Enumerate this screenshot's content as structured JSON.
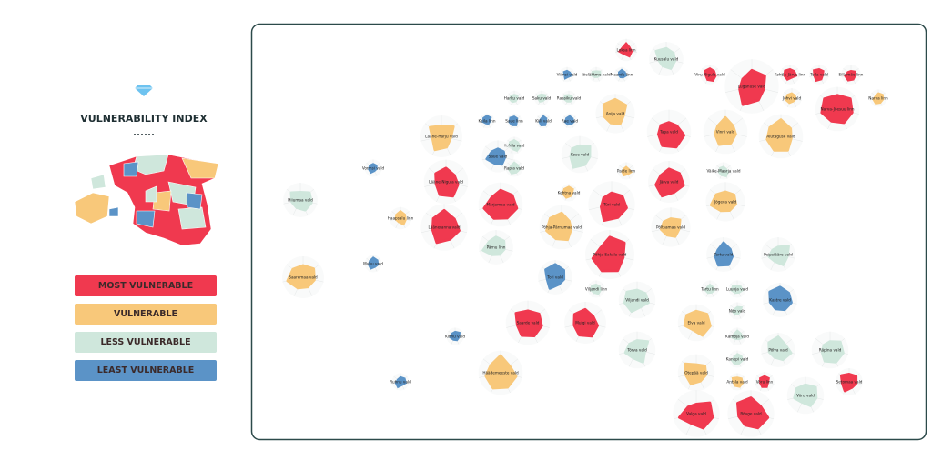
{
  "sidebar": {
    "title": "VULNERABILITY INDEX",
    "legend": [
      {
        "label": "MOST VULNERABLE",
        "color": "#f0394f"
      },
      {
        "label": "VULNERABLE",
        "color": "#f8c87a"
      },
      {
        "label": "LESS VULNERABLE",
        "color": "#cfe7dc"
      },
      {
        "label": "LEAST VULNERABLE",
        "color": "#5b93c7"
      }
    ]
  },
  "glyphs": [
    {
      "label": "Loksa linn",
      "color": "#f0394f"
    },
    {
      "label": "Kuusalu vald",
      "color": "#cfe7dc"
    },
    {
      "label": "Viimsi vald",
      "color": "#5b93c7"
    },
    {
      "label": "Jõelähtme vald",
      "color": "#cfe7dc"
    },
    {
      "label": "Maardu linn",
      "color": "#5b93c7"
    },
    {
      "label": "Viru-Nigula vald",
      "color": "#f0394f"
    },
    {
      "label": "Lüganuse vald",
      "color": "#f0394f"
    },
    {
      "label": "Kohtla-Järve linn",
      "color": "#f0394f"
    },
    {
      "label": "Toila vald",
      "color": "#f0394f"
    },
    {
      "label": "Sillamäe linn",
      "color": "#f0394f"
    },
    {
      "label": "Narva-Jõesuu linn",
      "color": "#f0394f"
    },
    {
      "label": "Narva linn",
      "color": "#f8c87a"
    },
    {
      "label": "Jõhvi vald",
      "color": "#f8c87a"
    },
    {
      "label": "Anija vald",
      "color": "#f8c87a"
    },
    {
      "label": "Harku vald",
      "color": "#cfe7dc"
    },
    {
      "label": "Saku vald",
      "color": "#cfe7dc"
    },
    {
      "label": "Raasiku vald",
      "color": "#cfe7dc"
    },
    {
      "label": "Keila linn",
      "color": "#5b93c7"
    },
    {
      "label": "Saue linn",
      "color": "#5b93c7"
    },
    {
      "label": "Kiili vald",
      "color": "#5b93c7"
    },
    {
      "label": "Rae vald",
      "color": "#5b93c7"
    },
    {
      "label": "Tapa vald",
      "color": "#f0394f"
    },
    {
      "label": "Vinni vald",
      "color": "#f8c87a"
    },
    {
      "label": "Alutaguse vald",
      "color": "#f8c87a"
    },
    {
      "label": "Lääne-Harju vald",
      "color": "#f8c87a"
    },
    {
      "label": "Kohila vald",
      "color": "#cfe7dc"
    },
    {
      "label": "Saue vald",
      "color": "#5b93c7"
    },
    {
      "label": "Rapla vald",
      "color": "#cfe7dc"
    },
    {
      "label": "Kose vald",
      "color": "#cfe7dc"
    },
    {
      "label": "Paide linn",
      "color": "#f8c87a"
    },
    {
      "label": "Järva vald",
      "color": "#f0394f"
    },
    {
      "label": "Väike-Maarja vald",
      "color": "#cfe7dc"
    },
    {
      "label": "Vormsi vald",
      "color": "#5b93c7"
    },
    {
      "label": "Lääne-Nigula vald",
      "color": "#f0394f"
    },
    {
      "label": "Hiiumaa vald",
      "color": "#cfe7dc"
    },
    {
      "label": "Märjamaa vald",
      "color": "#f0394f"
    },
    {
      "label": "Kehtna vald",
      "color": "#f8c87a"
    },
    {
      "label": "Türi vald",
      "color": "#f0394f"
    },
    {
      "label": "Jõgeva vald",
      "color": "#f8c87a"
    },
    {
      "label": "Haapsalu linn",
      "color": "#f8c87a"
    },
    {
      "label": "Lääneranna vald",
      "color": "#f0394f"
    },
    {
      "label": "Põhja-Pärnumaa vald",
      "color": "#f8c87a"
    },
    {
      "label": "Põltsamaa vald",
      "color": "#f8c87a"
    },
    {
      "label": "Pärnu linn",
      "color": "#cfe7dc"
    },
    {
      "label": "Põhja-Sakala vald",
      "color": "#f0394f"
    },
    {
      "label": "Tartu vald",
      "color": "#5b93c7"
    },
    {
      "label": "Peipsiääre vald",
      "color": "#cfe7dc"
    },
    {
      "label": "Saaremaa vald",
      "color": "#f8c87a"
    },
    {
      "label": "Muhu vald",
      "color": "#5b93c7"
    },
    {
      "label": "Tori vald",
      "color": "#5b93c7"
    },
    {
      "label": "Viljandi linn",
      "color": "#cfe7dc"
    },
    {
      "label": "Viljandi vald",
      "color": "#cfe7dc"
    },
    {
      "label": "Tartu linn",
      "color": "#cfe7dc"
    },
    {
      "label": "Luunja vald",
      "color": "#cfe7dc"
    },
    {
      "label": "Kastre vald",
      "color": "#5b93c7"
    },
    {
      "label": "Nõo vald",
      "color": "#cfe7dc"
    },
    {
      "label": "Saarde vald",
      "color": "#f0394f"
    },
    {
      "label": "Mulgi vald",
      "color": "#f0394f"
    },
    {
      "label": "Elva vald",
      "color": "#f8c87a"
    },
    {
      "label": "Kihnu vald",
      "color": "#5b93c7"
    },
    {
      "label": "Tõrva vald",
      "color": "#cfe7dc"
    },
    {
      "label": "Kambja vald",
      "color": "#cfe7dc"
    },
    {
      "label": "Põlva vald",
      "color": "#cfe7dc"
    },
    {
      "label": "Räpina vald",
      "color": "#cfe7dc"
    },
    {
      "label": "Kanepi vald",
      "color": "#cfe7dc"
    },
    {
      "label": "Otepää vald",
      "color": "#f8c87a"
    },
    {
      "label": "Häädemeeste vald",
      "color": "#f8c87a"
    },
    {
      "label": "Ruhnu vald",
      "color": "#5b93c7"
    },
    {
      "label": "Antsla vald",
      "color": "#f8c87a"
    },
    {
      "label": "Võru linn",
      "color": "#f0394f"
    },
    {
      "label": "Setomaa vald",
      "color": "#f0394f"
    },
    {
      "label": "Võru vald",
      "color": "#cfe7dc"
    },
    {
      "label": "Valga vald",
      "color": "#f0394f"
    },
    {
      "label": "Rõuge vald",
      "color": "#f0394f"
    }
  ]
}
